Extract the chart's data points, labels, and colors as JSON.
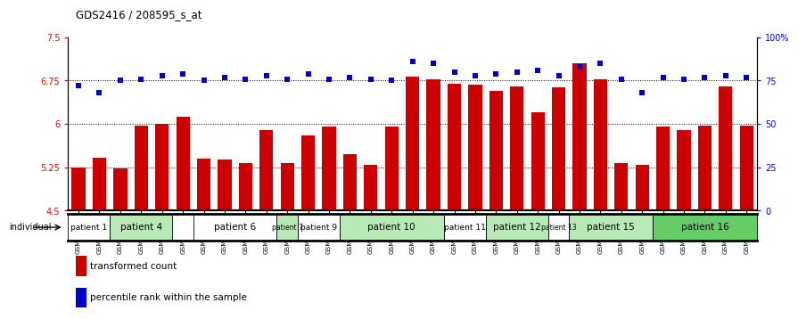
{
  "title": "GDS2416 / 208595_s_at",
  "samples": [
    "GSM135233",
    "GSM135234",
    "GSM135260",
    "GSM135232",
    "GSM135235",
    "GSM135236",
    "GSM135231",
    "GSM135242",
    "GSM135243",
    "GSM135251",
    "GSM135252",
    "GSM135244",
    "GSM135259",
    "GSM135254",
    "GSM135255",
    "GSM135261",
    "GSM135229",
    "GSM135230",
    "GSM135245",
    "GSM135246",
    "GSM135258",
    "GSM135247",
    "GSM135250",
    "GSM135237",
    "GSM135238",
    "GSM135239",
    "GSM135256",
    "GSM135257",
    "GSM135240",
    "GSM135248",
    "GSM135253",
    "GSM135241",
    "GSM135249"
  ],
  "bar_values": [
    5.25,
    5.42,
    5.23,
    5.97,
    6.0,
    6.13,
    5.4,
    5.38,
    5.33,
    5.9,
    5.33,
    5.8,
    5.95,
    5.48,
    5.3,
    5.95,
    6.82,
    6.78,
    6.7,
    6.68,
    6.57,
    6.65,
    6.2,
    6.63,
    7.05,
    6.78,
    5.32,
    5.3,
    5.95,
    5.9,
    5.97,
    6.65,
    5.97
  ],
  "dot_values": [
    72,
    68,
    75,
    76,
    78,
    79,
    75,
    77,
    76,
    78,
    76,
    79,
    76,
    77,
    76,
    75,
    86,
    85,
    80,
    78,
    79,
    80,
    81,
    78,
    83,
    85,
    76,
    68,
    77,
    76,
    77,
    78,
    77
  ],
  "patients": [
    {
      "label": "patient 1",
      "start": 0,
      "end": 2,
      "color": "#ffffff"
    },
    {
      "label": "patient 4",
      "start": 2,
      "end": 5,
      "color": "#b8eab8"
    },
    {
      "label": "patient 6",
      "start": 6,
      "end": 10,
      "color": "#ffffff"
    },
    {
      "label": "patient 7",
      "start": 10,
      "end": 11,
      "color": "#b8eab8"
    },
    {
      "label": "patient 9",
      "start": 11,
      "end": 13,
      "color": "#ffffff"
    },
    {
      "label": "patient 10",
      "start": 13,
      "end": 18,
      "color": "#b8eab8"
    },
    {
      "label": "patient 11",
      "start": 18,
      "end": 20,
      "color": "#ffffff"
    },
    {
      "label": "patient 12",
      "start": 20,
      "end": 23,
      "color": "#b8eab8"
    },
    {
      "label": "patient 13",
      "start": 23,
      "end": 24,
      "color": "#ffffff"
    },
    {
      "label": "patient 15",
      "start": 24,
      "end": 28,
      "color": "#b8eab8"
    },
    {
      "label": "patient 16",
      "start": 28,
      "end": 33,
      "color": "#66cc66"
    }
  ],
  "ylim_left": [
    4.5,
    7.5
  ],
  "ylim_right": [
    0,
    100
  ],
  "yticks_left": [
    4.5,
    5.25,
    6.0,
    6.75,
    7.5
  ],
  "yticks_right": [
    0,
    25,
    50,
    75,
    100
  ],
  "ytick_labels_left": [
    "4.5",
    "5.25",
    "6",
    "6.75",
    "7.5"
  ],
  "ytick_labels_right": [
    "0",
    "25",
    "50",
    "75",
    "100%"
  ],
  "hlines": [
    5.25,
    6.0,
    6.75
  ],
  "bar_color": "#cc0000",
  "dot_color": "#0000cc",
  "bar_bottom": 4.5,
  "individual_label": "individual",
  "legend_bar_label": "transformed count",
  "legend_dot_label": "percentile rank within the sample"
}
